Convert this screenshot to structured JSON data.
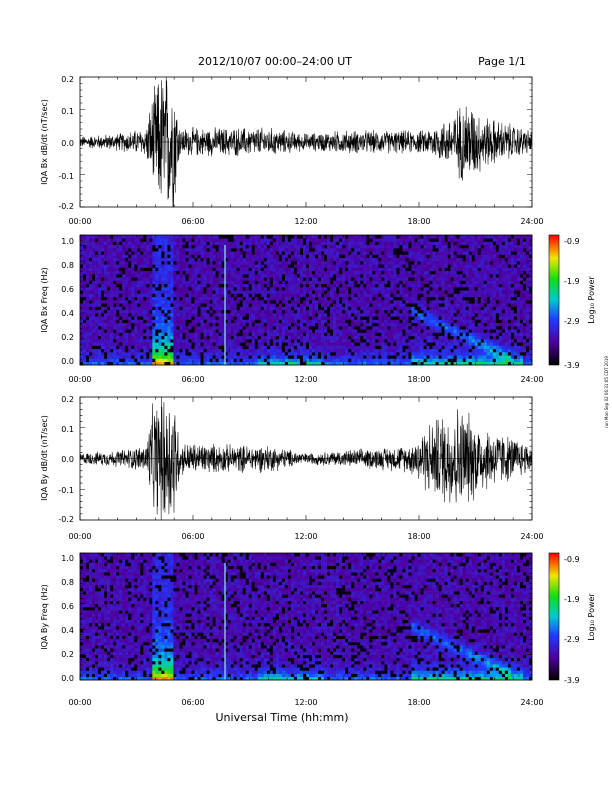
{
  "header": {
    "title": "2012/10/07   00:00–24:00 UT",
    "page": "Page 1/1"
  },
  "side_note": "run Mon Sep 02 06:31:05 CDT 2019",
  "xaxis": {
    "label": "Universal Time (hh:mm)",
    "ticks": [
      "00:00",
      "06:00",
      "12:00",
      "18:00",
      "24:00"
    ]
  },
  "colorbar": {
    "label": "Log₁₀ Power",
    "ticks": [
      "-0.9",
      "-1.9",
      "-2.9",
      "-3.9"
    ]
  },
  "panels": [
    {
      "ylabel": "IQA Bx dB/dt (nT/sec)",
      "yticks": [
        "0.2",
        "0.1",
        "0.0",
        "-0.1",
        "-0.2"
      ]
    },
    {
      "ylabel": "IQA Bx Freq (Hz)",
      "yticks": [
        "1.0",
        "0.8",
        "0.6",
        "0.4",
        "0.2",
        "0.0"
      ]
    },
    {
      "ylabel": "IQA By dB/dt (nT/sec)",
      "yticks": [
        "0.2",
        "0.1",
        "0.0",
        "-0.1",
        "-0.2"
      ]
    },
    {
      "ylabel": "IQA By Freq (Hz)",
      "yticks": [
        "1.0",
        "0.8",
        "0.6",
        "0.4",
        "0.2",
        "0.0"
      ]
    }
  ],
  "chart_data": [
    {
      "type": "line",
      "ylabel": "IQA Bx dB/dt (nT/sec)",
      "xlabel": "Universal Time (hh:mm)",
      "xlim": [
        0,
        24
      ],
      "ylim": [
        -0.2,
        0.2
      ],
      "envelope_x_hours": [
        0,
        2,
        3.5,
        3.8,
        4.3,
        5.0,
        5.3,
        8,
        10,
        12,
        14,
        16,
        18.2,
        19.5,
        20.5,
        21.5,
        24
      ],
      "envelope_amplitude": [
        0.02,
        0.03,
        0.05,
        0.15,
        0.25,
        0.25,
        0.05,
        0.05,
        0.05,
        0.03,
        0.04,
        0.04,
        0.04,
        0.08,
        0.15,
        0.09,
        0.04
      ]
    },
    {
      "type": "heatmap",
      "ylabel": "IQA Bx Freq (Hz)",
      "xlabel": "Universal Time (hh:mm)",
      "xlim": [
        0,
        24
      ],
      "ylim": [
        0,
        1.0
      ],
      "colorscale_range": [
        -3.9,
        -0.9
      ],
      "features_hours": {
        "storm_start": 3.8,
        "storm_end": 5.0,
        "vertical_line": 7.7,
        "rising_tone_start": 17.6
      }
    },
    {
      "type": "line",
      "ylabel": "IQA By dB/dt (nT/sec)",
      "xlabel": "Universal Time (hh:mm)",
      "xlim": [
        0,
        24
      ],
      "ylim": [
        -0.2,
        0.2
      ],
      "envelope_x_hours": [
        0,
        2,
        3.5,
        3.8,
        4.3,
        5.0,
        5.3,
        8,
        10,
        12,
        14,
        16,
        17.5,
        18.5,
        20,
        21.5,
        24
      ],
      "envelope_amplitude": [
        0.02,
        0.03,
        0.05,
        0.18,
        0.25,
        0.25,
        0.06,
        0.05,
        0.05,
        0.02,
        0.03,
        0.04,
        0.05,
        0.13,
        0.2,
        0.12,
        0.05
      ]
    },
    {
      "type": "heatmap",
      "ylabel": "IQA By Freq (Hz)",
      "xlabel": "Universal Time (hh:mm)",
      "xlim": [
        0,
        24
      ],
      "ylim": [
        0,
        1.0
      ],
      "colorscale_range": [
        -3.9,
        -0.9
      ],
      "features_hours": {
        "storm_start": 3.8,
        "storm_end": 5.0,
        "vertical_line": 7.7,
        "rising_tone_start": 17.6
      }
    }
  ]
}
